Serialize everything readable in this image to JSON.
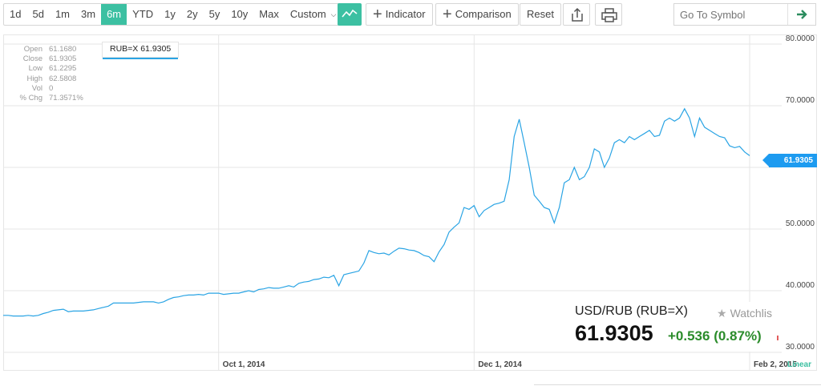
{
  "toolbar": {
    "ranges": [
      {
        "label": "1d"
      },
      {
        "label": "5d"
      },
      {
        "label": "1m"
      },
      {
        "label": "3m"
      },
      {
        "label": "6m",
        "active": true
      },
      {
        "label": "YTD"
      },
      {
        "label": "1y"
      },
      {
        "label": "2y"
      },
      {
        "label": "5y"
      },
      {
        "label": "10y"
      },
      {
        "label": "Max"
      }
    ],
    "custom_label": "Custom",
    "indicator_label": "Indicator",
    "comparison_label": "Comparison",
    "reset_label": "Reset",
    "symbol_placeholder": "Go To Symbol",
    "accent_color": "#3cc0a2"
  },
  "ohlc": {
    "open_label": "Open",
    "open": "61.1680",
    "close_label": "Close",
    "close": "61.9305",
    "low_label": "Low",
    "low": "61.2295",
    "high_label": "High",
    "high": "62.5808",
    "vol_label": "Vol",
    "vol": "0",
    "chg_label": "% Chg",
    "chg": "71.3571%"
  },
  "series_tag": "RUB=X 61.9305",
  "price_flag": "61.9305",
  "quote": {
    "title": "USD/RUB (RUB=X)",
    "watchlist": "Watchlis",
    "price": "61.9305",
    "change": "+0.536 (0.87%)",
    "change_color": "#2b8c2b"
  },
  "scale_label": "Linear",
  "chart_data": {
    "type": "line",
    "ylim": [
      30,
      80
    ],
    "y_ticks": [
      "80.0000",
      "70.0000",
      "60.0000",
      "50.0000",
      "40.0000",
      "30.0000"
    ],
    "x_ticks": [
      "Oct 1, 2014",
      "Dec 1, 2014",
      "Feb 2, 2015"
    ],
    "x_tick_index": [
      43,
      94,
      149
    ],
    "line_color": "#2aa4e4",
    "series": [
      {
        "values": [
          36.0,
          36.0,
          35.9,
          35.9,
          35.9,
          36.0,
          35.9,
          36.0,
          36.3,
          36.5,
          36.8,
          36.9,
          37.0,
          36.6,
          36.7,
          36.7,
          36.7,
          36.8,
          36.9,
          37.1,
          37.3,
          37.5,
          38.0,
          38.0,
          38.0,
          38.0,
          38.0,
          38.1,
          38.2,
          38.2,
          38.2,
          38.0,
          38.2,
          38.6,
          38.9,
          39.0,
          39.2,
          39.3,
          39.3,
          39.4,
          39.3,
          39.6,
          39.6,
          39.6,
          39.4,
          39.5,
          39.6,
          39.6,
          39.8,
          40.0,
          39.8,
          40.2,
          40.3,
          40.5,
          40.4,
          40.4,
          40.6,
          40.8,
          40.6,
          41.2,
          41.4,
          41.5,
          41.8,
          41.9,
          42.2,
          42.1,
          42.5,
          40.8,
          42.6,
          42.8,
          43.0,
          43.2,
          44.5,
          46.5,
          46.2,
          46.0,
          46.1,
          45.8,
          46.4,
          46.9,
          46.8,
          46.6,
          46.5,
          46.2,
          45.7,
          45.5,
          44.7,
          46.3,
          47.5,
          49.5,
          50.3,
          51.0,
          53.5,
          53.2,
          53.8,
          52.0,
          53.0,
          53.5,
          54.0,
          54.2,
          54.5,
          58.0,
          65.0,
          67.8,
          64.0,
          60.0,
          55.5,
          54.5,
          53.5,
          53.2,
          51.0,
          53.5,
          57.5,
          58.0,
          60.0,
          58.0,
          58.5,
          60.0,
          63.0,
          62.5,
          60.0,
          61.5,
          64.0,
          64.5,
          64.0,
          65.0,
          64.5,
          65.0,
          65.5,
          66.0,
          65.0,
          65.2,
          67.5,
          68.0,
          67.5,
          68.0,
          69.5,
          68.0,
          65.0,
          68.0,
          66.5,
          66.0,
          65.5,
          65.0,
          64.8,
          63.5,
          63.2,
          63.4,
          62.5,
          61.9
        ]
      }
    ]
  }
}
